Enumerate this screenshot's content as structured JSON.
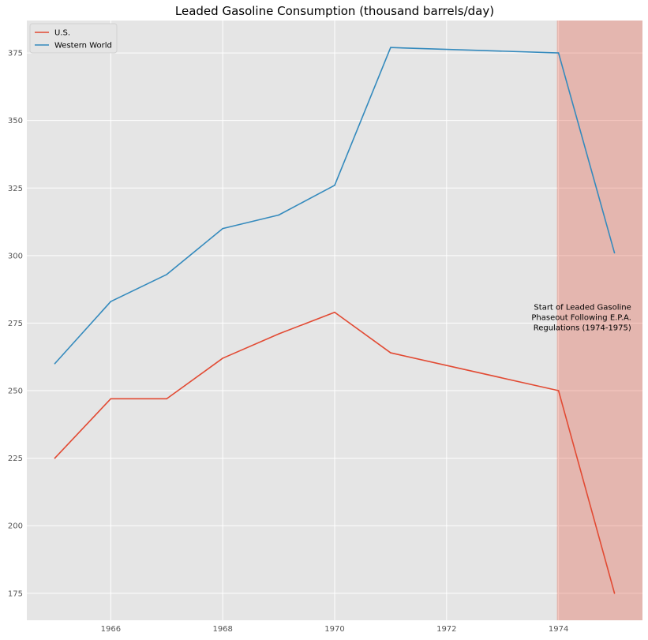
{
  "chart_data": {
    "type": "line",
    "title": "Leaded Gasoline Consumption (thousand barrels/day)",
    "xlabel": "",
    "ylabel": "",
    "x": [
      1965,
      1966,
      1967,
      1968,
      1969,
      1970,
      1971,
      1974,
      1975
    ],
    "xlim": [
      1964.5,
      1975.5
    ],
    "ylim": [
      165,
      387
    ],
    "xticks": [
      1966,
      1968,
      1970,
      1972,
      1974
    ],
    "yticks": [
      175,
      200,
      225,
      250,
      275,
      300,
      325,
      350,
      375
    ],
    "grid": true,
    "legend_position": "top-left",
    "series": [
      {
        "name": "U.S.",
        "color": "#E24A33",
        "values": [
          225,
          247,
          247,
          262,
          271,
          279,
          264,
          250,
          175
        ]
      },
      {
        "name": "Western World",
        "color": "#348ABD",
        "values": [
          260,
          283,
          293,
          310,
          315,
          326,
          377,
          375,
          301
        ]
      }
    ],
    "shaded_region": {
      "x_start": 1974,
      "x_end": 1975.5,
      "color": "#E24A33"
    },
    "annotation": {
      "lines": [
        "Start of Leaded Gasoline",
        "Phaseout Following E.P.A.",
        "Regulations (1974-1975)"
      ],
      "x": 1975.3,
      "y": 280
    }
  }
}
